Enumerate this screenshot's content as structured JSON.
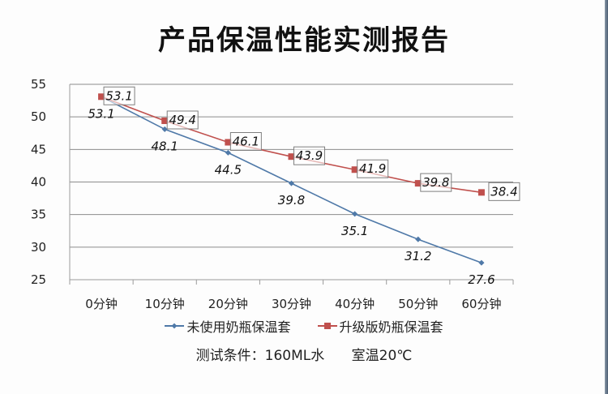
{
  "title": "产品保温性能实测报告",
  "footnote": {
    "condition": "测试条件：160ML水",
    "room_temp": "室温20℃"
  },
  "colors": {
    "series1": "#4f79a8",
    "series2": "#c0504d",
    "grid": "#8c8c8c",
    "label_box": "#7f7f7f"
  },
  "chart_data": {
    "type": "line",
    "title": "产品保温性能实测报告",
    "xlabel": "",
    "ylabel": "",
    "categories": [
      "0分钟",
      "10分钟",
      "20分钟",
      "30分钟",
      "40分钟",
      "50分钟",
      "60分钟"
    ],
    "series": [
      {
        "name": "未使用奶瓶保温套",
        "values": [
          53.1,
          48.1,
          44.5,
          39.8,
          35.1,
          31.2,
          27.6
        ],
        "marker": "diamond",
        "color": "#4f79a8"
      },
      {
        "name": "升级版奶瓶保温套",
        "values": [
          53.1,
          49.4,
          46.1,
          43.9,
          41.9,
          39.8,
          38.4
        ],
        "marker": "square",
        "color": "#c0504d"
      }
    ],
    "ylim": [
      25,
      55
    ],
    "yticks": [
      25,
      30,
      35,
      40,
      45,
      50,
      55
    ],
    "grid": true,
    "legend_position": "bottom",
    "annotations": "数据标签：升级版系列带边框标签显示在点右侧，未使用系列标签显示在点下方"
  }
}
